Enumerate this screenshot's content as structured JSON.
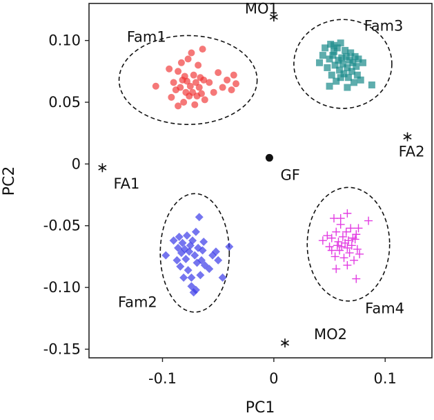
{
  "chart_data": {
    "type": "scatter",
    "title": "",
    "xlabel": "PC1",
    "ylabel": "PC2",
    "xlim": [
      -0.166,
      0.142
    ],
    "ylim": [
      -0.157,
      0.13
    ],
    "grid": false,
    "legend": "none",
    "x_ticks": [
      {
        "value": -0.1,
        "label": "-0.1"
      },
      {
        "value": 0,
        "label": "0"
      },
      {
        "value": 0.1,
        "label": "0.1"
      }
    ],
    "y_ticks": [
      {
        "value": 0.1,
        "label": "0.10"
      },
      {
        "value": 0.05,
        "label": "0.05"
      },
      {
        "value": 0,
        "label": "0"
      },
      {
        "value": -0.05,
        "label": "-0.05"
      },
      {
        "value": -0.1,
        "label": "-0.10"
      },
      {
        "value": -0.15,
        "label": "-0.15"
      }
    ],
    "groups": [
      {
        "name": "Fam1",
        "marker": "circle",
        "color": "#f03030",
        "ellipse": {
          "cx": -0.077,
          "cy": 0.068,
          "rx": 0.062,
          "ry": 0.036
        },
        "label_pos": {
          "x": -0.132,
          "y": 0.099
        },
        "points": [
          [
            -0.106,
            0.063
          ],
          [
            -0.094,
            0.077
          ],
          [
            -0.09,
            0.066
          ],
          [
            -0.088,
            0.06
          ],
          [
            -0.086,
            0.075
          ],
          [
            -0.084,
            0.062
          ],
          [
            -0.083,
            0.082
          ],
          [
            -0.082,
            0.068
          ],
          [
            -0.081,
            0.05
          ],
          [
            -0.08,
            0.071
          ],
          [
            -0.079,
            0.058
          ],
          [
            -0.078,
            0.067
          ],
          [
            -0.077,
            0.085
          ],
          [
            -0.076,
            0.055
          ],
          [
            -0.075,
            0.063
          ],
          [
            -0.074,
            0.09
          ],
          [
            -0.073,
            0.058
          ],
          [
            -0.072,
            0.072
          ],
          [
            -0.071,
            0.048
          ],
          [
            -0.07,
            0.066
          ],
          [
            -0.069,
            0.055
          ],
          [
            -0.068,
            0.08
          ],
          [
            -0.067,
            0.062
          ],
          [
            -0.066,
            0.07
          ],
          [
            -0.065,
            0.057
          ],
          [
            -0.064,
            0.093
          ],
          [
            -0.063,
            0.068
          ],
          [
            -0.062,
            0.052
          ],
          [
            -0.058,
            0.066
          ],
          [
            -0.054,
            0.058
          ],
          [
            -0.05,
            0.074
          ],
          [
            -0.046,
            0.062
          ],
          [
            -0.042,
            0.068
          ],
          [
            -0.038,
            0.06
          ],
          [
            -0.036,
            0.072
          ],
          [
            -0.034,
            0.065
          ],
          [
            -0.092,
            0.054
          ],
          [
            -0.086,
            0.047
          ]
        ]
      },
      {
        "name": "Fam2",
        "marker": "diamond",
        "color": "#3a3ae8",
        "ellipse": {
          "cx": -0.071,
          "cy": -0.072,
          "rx": 0.031,
          "ry": 0.048
        },
        "label_pos": {
          "x": -0.14,
          "y": -0.116
        },
        "points": [
          [
            -0.097,
            -0.074
          ],
          [
            -0.09,
            -0.062
          ],
          [
            -0.087,
            -0.078
          ],
          [
            -0.086,
            -0.068
          ],
          [
            -0.085,
            -0.059
          ],
          [
            -0.084,
            -0.083
          ],
          [
            -0.083,
            -0.072
          ],
          [
            -0.082,
            -0.064
          ],
          [
            -0.081,
            -0.092
          ],
          [
            -0.08,
            -0.069
          ],
          [
            -0.079,
            -0.077
          ],
          [
            -0.078,
            -0.058
          ],
          [
            -0.077,
            -0.086
          ],
          [
            -0.076,
            -0.071
          ],
          [
            -0.075,
            -0.066
          ],
          [
            -0.074,
            -0.099
          ],
          [
            -0.073,
            -0.062
          ],
          [
            -0.072,
            -0.104
          ],
          [
            -0.071,
            -0.074
          ],
          [
            -0.07,
            -0.055
          ],
          [
            -0.069,
            -0.08
          ],
          [
            -0.068,
            -0.068
          ],
          [
            -0.067,
            -0.043
          ],
          [
            -0.066,
            -0.09
          ],
          [
            -0.065,
            -0.078
          ],
          [
            -0.064,
            -0.07
          ],
          [
            -0.063,
            -0.063
          ],
          [
            -0.062,
            -0.082
          ],
          [
            -0.058,
            -0.085
          ],
          [
            -0.055,
            -0.074
          ],
          [
            -0.052,
            -0.071
          ],
          [
            -0.05,
            -0.078
          ],
          [
            -0.046,
            -0.092
          ],
          [
            -0.04,
            -0.067
          ],
          [
            -0.07,
            -0.102
          ],
          [
            -0.074,
            -0.092
          ]
        ]
      },
      {
        "name": "Fam3",
        "marker": "square",
        "color": "#1a8a8a",
        "ellipse": {
          "cx": 0.062,
          "cy": 0.081,
          "rx": 0.044,
          "ry": 0.036
        },
        "label_pos": {
          "x": 0.081,
          "y": 0.108
        },
        "points": [
          [
            0.041,
            0.082
          ],
          [
            0.044,
            0.088
          ],
          [
            0.046,
            0.094
          ],
          [
            0.048,
            0.078
          ],
          [
            0.05,
            0.085
          ],
          [
            0.051,
            0.097
          ],
          [
            0.052,
            0.072
          ],
          [
            0.053,
            0.088
          ],
          [
            0.054,
            0.091
          ],
          [
            0.055,
            0.08
          ],
          [
            0.056,
            0.067
          ],
          [
            0.057,
            0.094
          ],
          [
            0.058,
            0.084
          ],
          [
            0.059,
            0.076
          ],
          [
            0.06,
            0.098
          ],
          [
            0.061,
            0.086
          ],
          [
            0.062,
            0.081
          ],
          [
            0.063,
            0.073
          ],
          [
            0.064,
            0.092
          ],
          [
            0.065,
            0.087
          ],
          [
            0.066,
            0.078
          ],
          [
            0.067,
            0.07
          ],
          [
            0.068,
            0.084
          ],
          [
            0.069,
            0.09
          ],
          [
            0.07,
            0.075
          ],
          [
            0.071,
            0.082
          ],
          [
            0.072,
            0.066
          ],
          [
            0.073,
            0.087
          ],
          [
            0.074,
            0.079
          ],
          [
            0.075,
            0.072
          ],
          [
            0.076,
            0.085
          ],
          [
            0.078,
            0.068
          ],
          [
            0.08,
            0.082
          ],
          [
            0.088,
            0.064
          ],
          [
            0.05,
            0.063
          ],
          [
            0.066,
            0.062
          ],
          [
            0.06,
            0.07
          ],
          [
            0.054,
            0.096
          ]
        ]
      },
      {
        "name": "Fam4",
        "marker": "plus",
        "color": "#e23ce2",
        "ellipse": {
          "cx": 0.067,
          "cy": -0.065,
          "rx": 0.037,
          "ry": 0.046
        },
        "label_pos": {
          "x": 0.082,
          "y": -0.121
        },
        "points": [
          [
            0.044,
            -0.062
          ],
          [
            0.048,
            -0.058
          ],
          [
            0.05,
            -0.067
          ],
          [
            0.052,
            -0.06
          ],
          [
            0.054,
            -0.044
          ],
          [
            0.055,
            -0.075
          ],
          [
            0.056,
            -0.055
          ],
          [
            0.057,
            -0.066
          ],
          [
            0.058,
            -0.063
          ],
          [
            0.059,
            -0.07
          ],
          [
            0.06,
            -0.049
          ],
          [
            0.061,
            -0.067
          ],
          [
            0.062,
            -0.059
          ],
          [
            0.063,
            -0.076
          ],
          [
            0.064,
            -0.064
          ],
          [
            0.065,
            -0.055
          ],
          [
            0.066,
            -0.068
          ],
          [
            0.067,
            -0.062
          ],
          [
            0.068,
            -0.072
          ],
          [
            0.069,
            -0.052
          ],
          [
            0.07,
            -0.066
          ],
          [
            0.071,
            -0.06
          ],
          [
            0.072,
            -0.078
          ],
          [
            0.073,
            -0.061
          ],
          [
            0.074,
            -0.057
          ],
          [
            0.075,
            -0.069
          ],
          [
            0.076,
            -0.052
          ],
          [
            0.077,
            -0.073
          ],
          [
            0.085,
            -0.046
          ],
          [
            0.056,
            -0.085
          ],
          [
            0.066,
            -0.082
          ],
          [
            0.074,
            -0.093
          ],
          [
            0.066,
            -0.04
          ],
          [
            0.06,
            -0.044
          ],
          [
            0.052,
            -0.07
          ]
        ]
      }
    ],
    "references": [
      {
        "name": "MO1",
        "marker": "asterisk",
        "x": 0,
        "y": 0.119,
        "label_pos": {
          "x": -0.026,
          "y": 0.122
        }
      },
      {
        "name": "FA2",
        "marker": "asterisk",
        "x": 0.12,
        "y": 0.022,
        "label_pos": {
          "x": 0.112,
          "y": 0.006
        }
      },
      {
        "name": "FA1",
        "marker": "asterisk",
        "x": -0.154,
        "y": -0.003,
        "label_pos": {
          "x": -0.144,
          "y": -0.02
        }
      },
      {
        "name": "MO2",
        "marker": "asterisk",
        "x": 0.01,
        "y": -0.145,
        "label_pos": {
          "x": 0.036,
          "y": -0.142
        }
      },
      {
        "name": "GF",
        "marker": "dot",
        "x": -0.004,
        "y": 0.005,
        "label_pos": {
          "x": 0.006,
          "y": -0.013
        }
      }
    ]
  }
}
